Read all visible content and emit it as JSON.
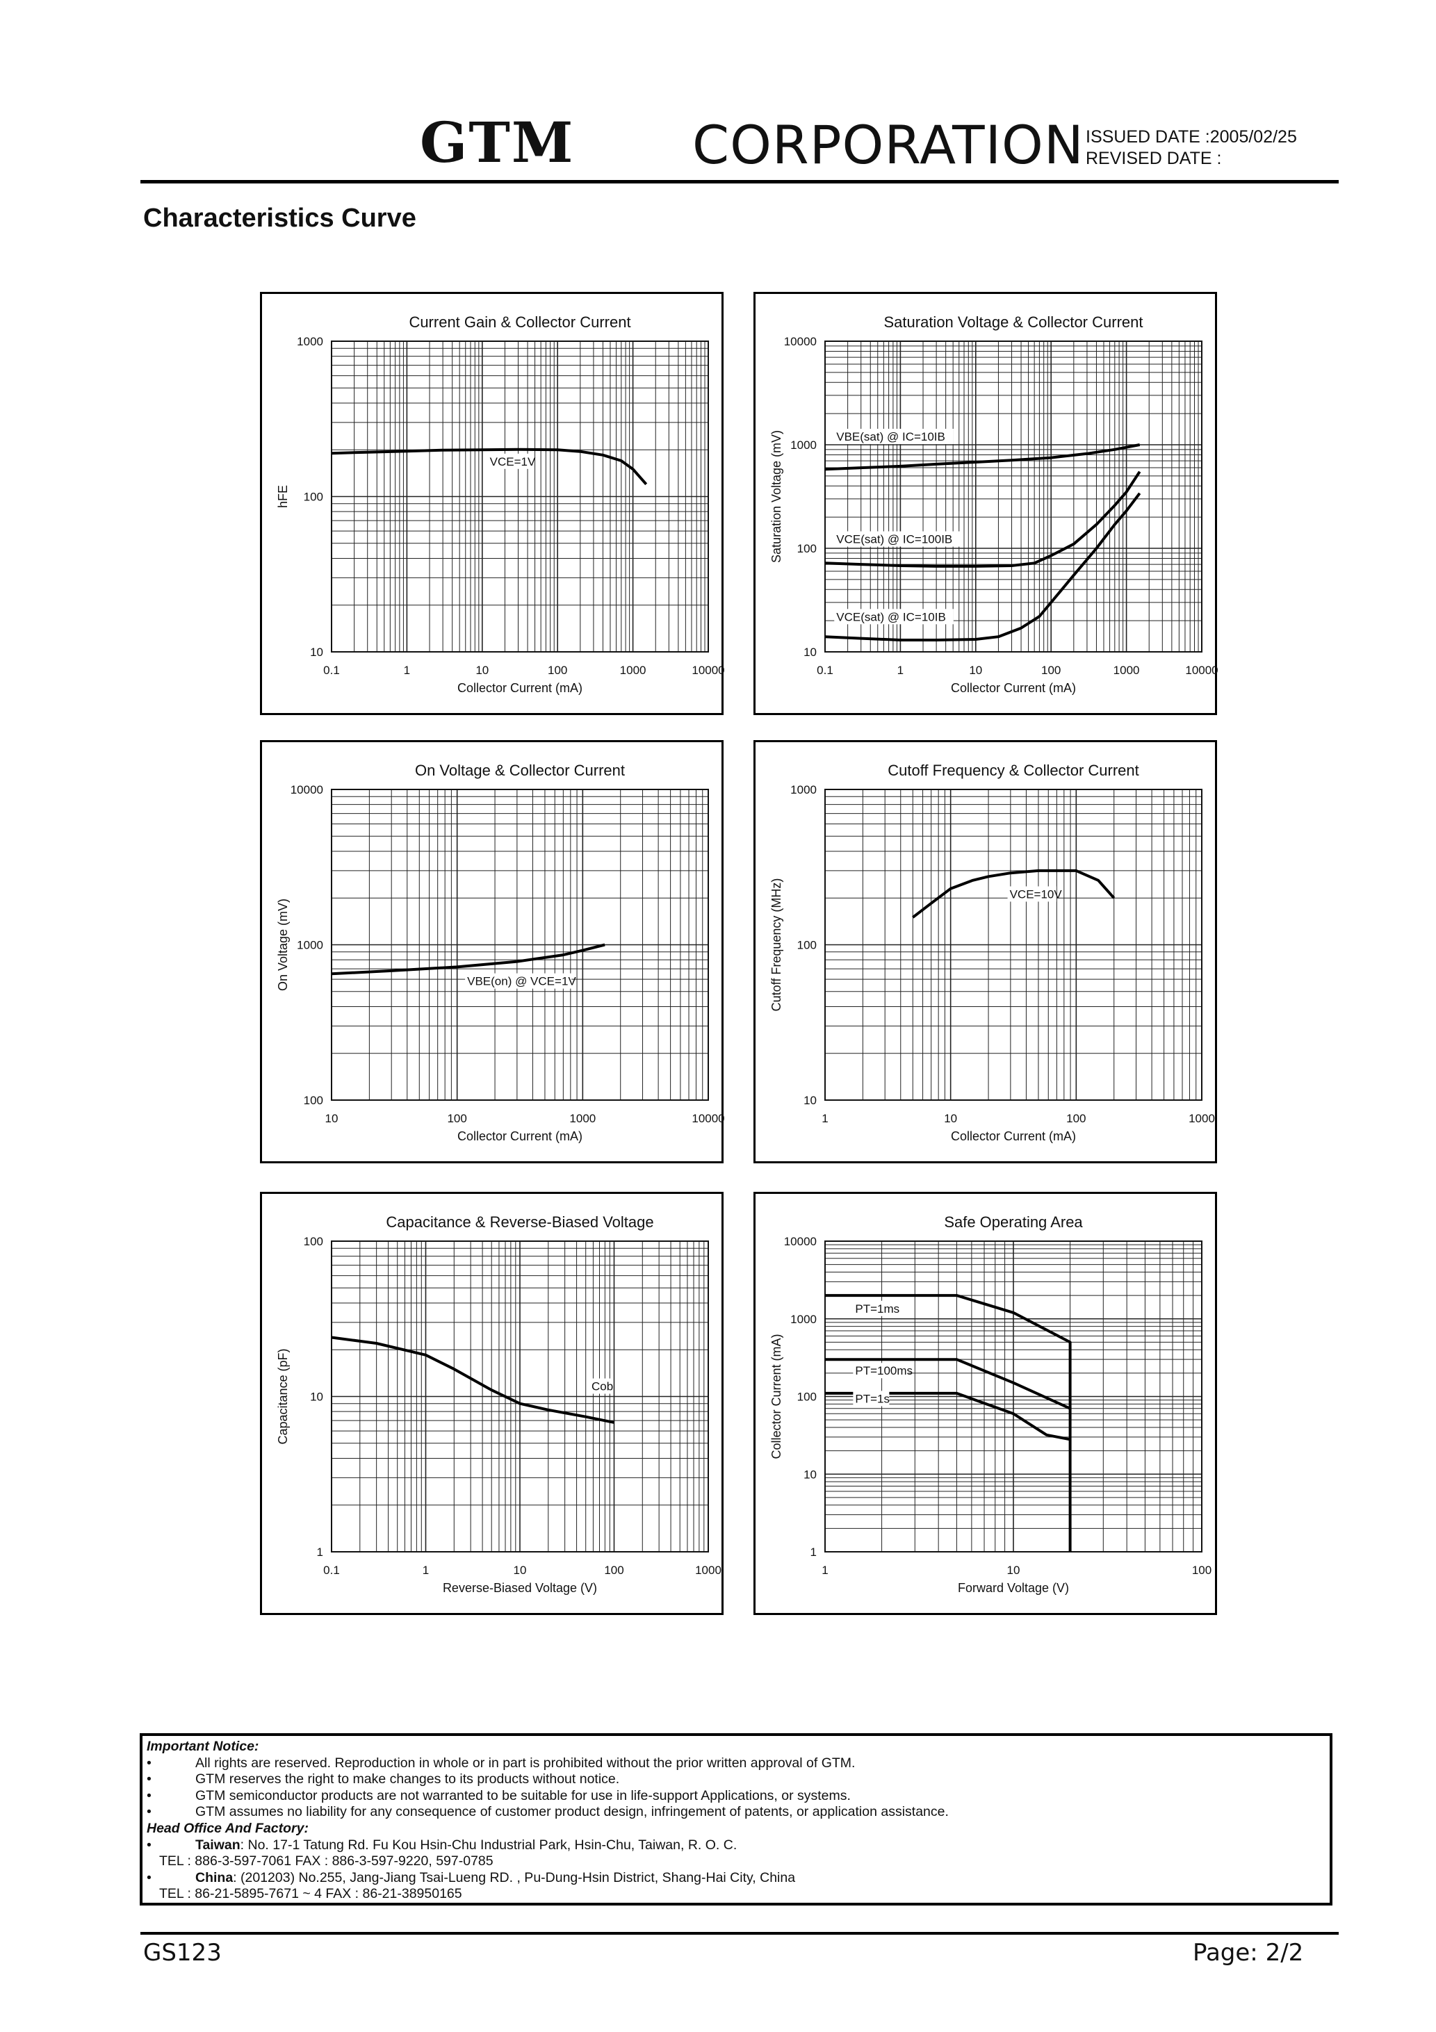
{
  "header": {
    "logo": "GTM",
    "company": "CORPORATION",
    "issued": "ISSUED DATE   :2005/02/25",
    "revised": "REVISED DATE :"
  },
  "section_title": "Characteristics Curve",
  "chart_data": [
    {
      "type": "line",
      "title": "Current Gain & Collector Current",
      "xlabel": "Collector Current (mA)",
      "ylabel": "hFE",
      "xscale": "log",
      "yscale": "log",
      "xlim": [
        0.1,
        10000
      ],
      "ylim": [
        10,
        1000
      ],
      "xticks": [
        "0.1",
        "1",
        "10",
        "100",
        "1000",
        "10000"
      ],
      "yticks": [
        "10",
        "100",
        "1000"
      ],
      "grid": true,
      "annotations": [
        "VCE=1V"
      ],
      "series": [
        {
          "x": [
            0.1,
            0.3,
            1,
            3,
            10,
            30,
            100,
            200,
            400,
            700,
            1000,
            1500
          ],
          "y": [
            190,
            193,
            196,
            199,
            200,
            201,
            200,
            195,
            185,
            170,
            150,
            120
          ]
        }
      ]
    },
    {
      "type": "line",
      "title": "Saturation Voltage & Collector Current",
      "xlabel": "Collector Current (mA)",
      "ylabel": "Saturation Voltage (mV)",
      "xscale": "log",
      "yscale": "log",
      "xlim": [
        0.1,
        10000
      ],
      "ylim": [
        10,
        10000
      ],
      "xticks": [
        "0.1",
        "1",
        "10",
        "100",
        "1000",
        "10000"
      ],
      "yticks": [
        "10",
        "100",
        "1000",
        "10000"
      ],
      "grid": true,
      "annotations": [
        "VBE(sat) @ IC=10IB",
        "VCE(sat) @ IC=100IB",
        "VCE(sat) @ IC=10IB"
      ],
      "series": [
        {
          "x": [
            0.1,
            0.3,
            1,
            3,
            10,
            30,
            100,
            300,
            700,
            1500
          ],
          "y": [
            580,
            600,
            620,
            650,
            680,
            710,
            750,
            820,
            900,
            1000
          ]
        },
        {
          "x": [
            0.1,
            0.3,
            1,
            3,
            10,
            30,
            60,
            100,
            200,
            400,
            700,
            1000,
            1500
          ],
          "y": [
            72,
            70,
            68,
            67,
            67,
            68,
            72,
            85,
            110,
            170,
            260,
            350,
            550
          ]
        },
        {
          "x": [
            0.1,
            0.3,
            1,
            3,
            10,
            20,
            40,
            70,
            100,
            200,
            400,
            700,
            1000,
            1500
          ],
          "y": [
            14,
            13.5,
            13,
            13,
            13.2,
            14,
            17,
            22,
            30,
            55,
            100,
            170,
            230,
            340
          ]
        }
      ]
    },
    {
      "type": "line",
      "title": "On Voltage & Collector Current",
      "xlabel": "Collector Current (mA)",
      "ylabel": "On Voltage (mV)",
      "xscale": "log",
      "yscale": "log",
      "xlim": [
        10,
        10000
      ],
      "ylim": [
        100,
        10000
      ],
      "xticks": [
        "10",
        "100",
        "1000",
        "10000"
      ],
      "yticks": [
        "100",
        "1000",
        "10000"
      ],
      "grid": true,
      "annotations": [
        "VBE(on) @ VCE=1V"
      ],
      "series": [
        {
          "x": [
            10,
            30,
            100,
            300,
            700,
            1000,
            1500
          ],
          "y": [
            650,
            680,
            720,
            780,
            860,
            920,
            1000
          ]
        }
      ]
    },
    {
      "type": "line",
      "title": "Cutoff Frequency & Collector Current",
      "xlabel": "Collector Current (mA)",
      "ylabel": "Cutoff Frequency (MHz)",
      "xscale": "log",
      "yscale": "log",
      "xlim": [
        1,
        1000
      ],
      "ylim": [
        10,
        1000
      ],
      "xticks": [
        "1",
        "10",
        "100",
        "1000"
      ],
      "yticks": [
        "10",
        "100",
        "1000"
      ],
      "grid": true,
      "annotations": [
        "VCE=10V"
      ],
      "series": [
        {
          "x": [
            5,
            7,
            10,
            15,
            20,
            30,
            50,
            100,
            150,
            200
          ],
          "y": [
            150,
            185,
            230,
            260,
            275,
            290,
            300,
            300,
            260,
            200
          ]
        }
      ]
    },
    {
      "type": "line",
      "title": "Capacitance & Reverse-Biased Voltage",
      "xlabel": "Reverse-Biased Voltage (V)",
      "ylabel": "Capacitance (pF)",
      "xscale": "log",
      "yscale": "log",
      "xlim": [
        0.1,
        1000
      ],
      "ylim": [
        1,
        100
      ],
      "xticks": [
        "0.1",
        "1",
        "10",
        "100",
        "1000"
      ],
      "yticks": [
        "1",
        "10",
        "100"
      ],
      "grid": true,
      "annotations": [
        "Cob"
      ],
      "series": [
        {
          "x": [
            0.1,
            0.3,
            1,
            2,
            5,
            10,
            20,
            50,
            100
          ],
          "y": [
            24,
            22,
            18.5,
            15,
            11,
            9,
            8.2,
            7.4,
            6.8
          ]
        }
      ]
    },
    {
      "type": "line",
      "title": "Safe Operating Area",
      "xlabel": "Forward Voltage (V)",
      "ylabel": "Collector Current (mA)",
      "xscale": "log",
      "yscale": "log",
      "xlim": [
        1,
        100
      ],
      "ylim": [
        1,
        10000
      ],
      "xticks": [
        "1",
        "10",
        "100"
      ],
      "yticks": [
        "1",
        "10",
        "100",
        "1000",
        "10000"
      ],
      "grid": true,
      "annotations": [
        "PT=1ms",
        "PT=100ms",
        "PT=1s"
      ],
      "series": [
        {
          "x": [
            1,
            5,
            10,
            20,
            20
          ],
          "y": [
            2000,
            2000,
            1200,
            500,
            1
          ]
        },
        {
          "x": [
            1,
            5,
            10,
            20
          ],
          "y": [
            300,
            300,
            150,
            70
          ]
        },
        {
          "x": [
            1,
            5,
            10,
            15,
            20
          ],
          "y": [
            110,
            110,
            60,
            32,
            28
          ]
        }
      ]
    }
  ],
  "notice": {
    "title": "Important Notice:",
    "items": [
      "All rights are reserved. Reproduction in whole or in part is prohibited without the prior written approval of GTM.",
      "GTM reserves the right to make changes to its products without notice.",
      "GTM semiconductor products are not warranted to be suitable for use in life-support Applications, or systems.",
      "GTM assumes no liability for any consequence of customer product design, infringement of patents, or application assistance."
    ],
    "office_title": "Head Office And Factory:",
    "taiwan_label": "Taiwan",
    "taiwan_addr": ": No. 17-1 Tatung Rd. Fu Kou Hsin-Chu Industrial Park, Hsin-Chu, Taiwan, R. O. C.",
    "taiwan_tel": "TEL : 886-3-597-7061 FAX : 886-3-597-9220, 597-0785",
    "china_label": "China",
    "china_addr": ": (201203) No.255, Jang-Jiang Tsai-Lueng RD. , Pu-Dung-Hsin District, Shang-Hai City, China",
    "china_tel": "TEL : 86-21-5895-7671 ~ 4    FAX : 86-21-38950165",
    "bullet": "•"
  },
  "footer": {
    "doc_id": "GS123",
    "page": "Page: 2/2"
  }
}
